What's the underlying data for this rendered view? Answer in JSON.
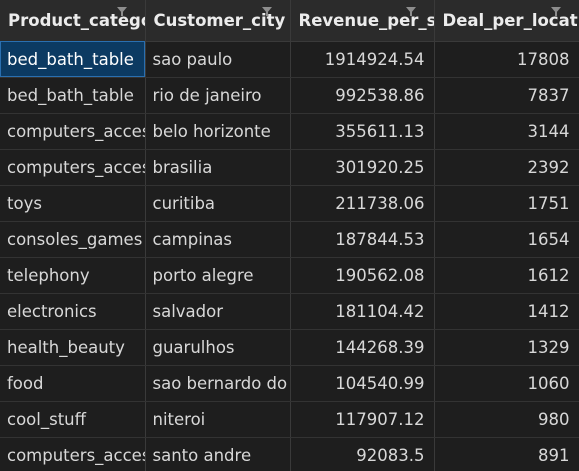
{
  "table": {
    "columns": [
      "Product_catego",
      "Customer_city",
      "Revenue_per_se",
      "Deal_per_locatio"
    ],
    "rows": [
      [
        "bed_bath_table",
        "sao paulo",
        "1914924.54",
        "17808"
      ],
      [
        "bed_bath_table",
        "rio de janeiro",
        "992538.86",
        "7837"
      ],
      [
        "computers_acces",
        "belo horizonte",
        "355611.13",
        "3144"
      ],
      [
        "computers_acces",
        "brasilia",
        "301920.25",
        "2392"
      ],
      [
        "toys",
        "curitiba",
        "211738.06",
        "1751"
      ],
      [
        "consoles_games",
        "campinas",
        "187844.53",
        "1654"
      ],
      [
        "telephony",
        "porto alegre",
        "190562.08",
        "1612"
      ],
      [
        "electronics",
        "salvador",
        "181104.42",
        "1412"
      ],
      [
        "health_beauty",
        "guarulhos",
        "144268.39",
        "1329"
      ],
      [
        "food",
        "sao bernardo do",
        "104540.99",
        "1060"
      ],
      [
        "cool_stuff",
        "niteroi",
        "117907.12",
        "980"
      ],
      [
        "computers_acces",
        "santo andre",
        "92083.5",
        "891"
      ]
    ],
    "selected_cell": {
      "row": 0,
      "col": 0
    },
    "colors": {
      "background": "#1e1e1e",
      "header_background": "#2b2b2b",
      "selection": "#0c3a62",
      "text": "#d8d8d8"
    }
  }
}
